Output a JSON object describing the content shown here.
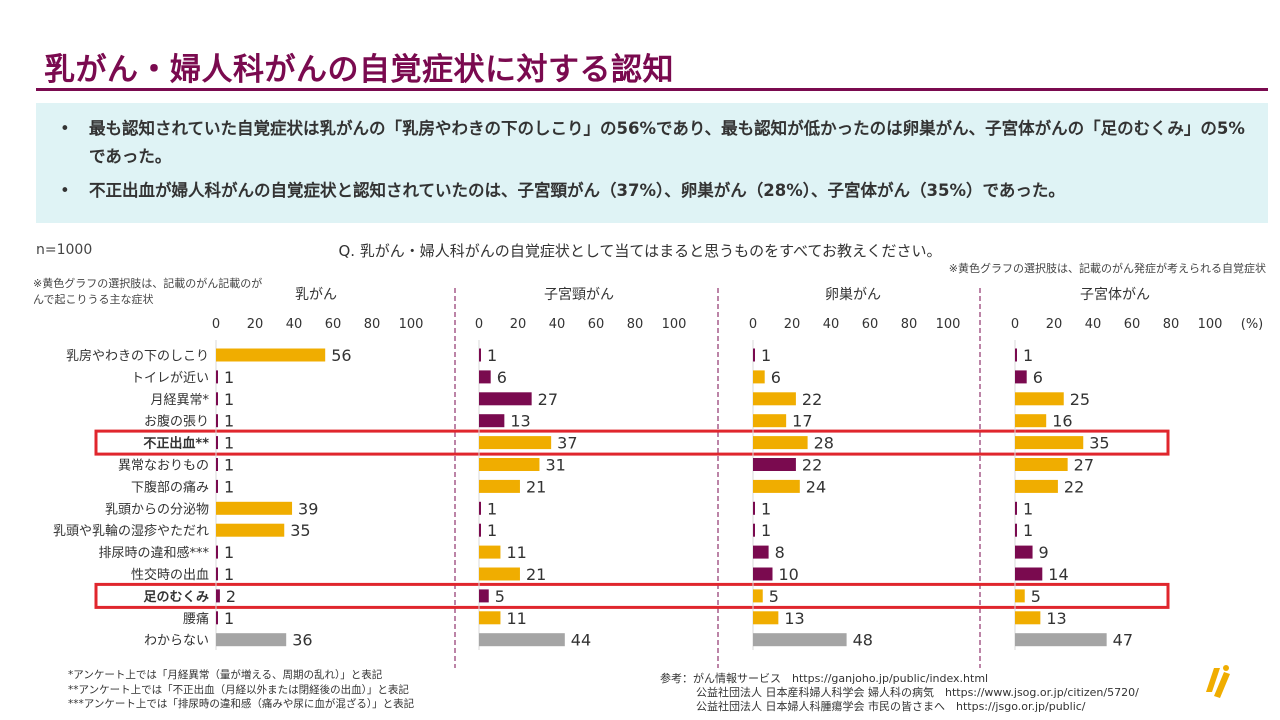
{
  "title": "乳がん・婦人科がんの自覚症状に対する認知",
  "summary": [
    "最も認知されていた自覚症状は乳がんの「乳房やわきの下のしこり」の56%であり、最も認知が低かったのは卵巣がん、子宮体がんの「足のむくみ」の5%であった。",
    "不正出血が婦人科がんの自覚症状と認知されていたのは、子宮頸がん（37%）、卵巣がん（28%）、子宮体がん（35%）であった。"
  ],
  "n_label": "n=1000",
  "question": "Q. 乳がん・婦人科がんの自覚症状として当てはまると思うものをすべてお教えください。",
  "note_left": "※黄色グラフの選択肢は、記載のがん記載のがんで起こりうる主な症状",
  "note_right": "※黄色グラフの選択肢は、記載のがん発症が考えられる自覚症状",
  "footnotes": [
    "*アンケート上では「月経異常（量が増える、周期の乱れ）」と表記",
    "**アンケート上では「不正出血（月経以外または閉経後の出血）」と表記",
    "***アンケート上では「排尿時の違和感（痛みや尿に血が混ざる）」と表記"
  ],
  "references": [
    "参考：がん情報サービス　https://ganjoho.jp/public/index.html",
    "公益社団法人 日本産科婦人科学会 婦人科の病気　https://www.jsog.or.jp/citizen/5720/",
    "公益社団法人 日本婦人科腫瘍学会 市民の皆さまへ　https://jsgo.or.jp/public/"
  ],
  "colors": {
    "brand": "#7a0a4f",
    "yellow": "#f0ad00",
    "purple": "#7a0a4f",
    "gray": "#a5a5a5",
    "highlight": "#e0262d",
    "summary_bg": "#dff3f5"
  },
  "chart_data": {
    "type": "bar",
    "orientation": "horizontal",
    "unit_label": "(%)",
    "xlim": [
      0,
      100
    ],
    "ticks": [
      "0",
      "20",
      "40",
      "60",
      "80",
      "100"
    ],
    "categories": [
      "乳房やわきの下のしこり",
      "トイレが近い",
      "月経異常*",
      "お腹の張り",
      "不正出血**",
      "異常なおりもの",
      "下腹部の痛み",
      "乳頭からの分泌物",
      "乳頭や乳輪の湿疹やただれ",
      "排尿時の違和感***",
      "性交時の出血",
      "足のむくみ",
      "腰痛",
      "わからない"
    ],
    "highlighted_categories": [
      "不正出血**",
      "足のむくみ"
    ],
    "panels": [
      {
        "name": "乳がん",
        "values": [
          56,
          1,
          1,
          1,
          1,
          1,
          1,
          39,
          35,
          1,
          1,
          2,
          1,
          36
        ],
        "colors": [
          "yellow",
          "purple",
          "purple",
          "purple",
          "purple",
          "purple",
          "purple",
          "yellow",
          "yellow",
          "purple",
          "purple",
          "purple",
          "purple",
          "gray"
        ]
      },
      {
        "name": "子宮頸がん",
        "values": [
          1,
          6,
          27,
          13,
          37,
          31,
          21,
          1,
          1,
          11,
          21,
          5,
          11,
          44
        ],
        "colors": [
          "purple",
          "purple",
          "purple",
          "purple",
          "yellow",
          "yellow",
          "yellow",
          "purple",
          "purple",
          "yellow",
          "yellow",
          "purple",
          "yellow",
          "gray"
        ]
      },
      {
        "name": "卵巣がん",
        "values": [
          1,
          6,
          22,
          17,
          28,
          22,
          24,
          1,
          1,
          8,
          10,
          5,
          13,
          48
        ],
        "colors": [
          "purple",
          "yellow",
          "yellow",
          "yellow",
          "yellow",
          "purple",
          "yellow",
          "purple",
          "purple",
          "purple",
          "purple",
          "yellow",
          "yellow",
          "gray"
        ]
      },
      {
        "name": "子宮体がん",
        "values": [
          1,
          6,
          25,
          16,
          35,
          27,
          22,
          1,
          1,
          9,
          14,
          5,
          13,
          47
        ],
        "colors": [
          "purple",
          "purple",
          "yellow",
          "yellow",
          "yellow",
          "yellow",
          "yellow",
          "purple",
          "purple",
          "purple",
          "purple",
          "yellow",
          "yellow",
          "gray"
        ]
      }
    ]
  }
}
